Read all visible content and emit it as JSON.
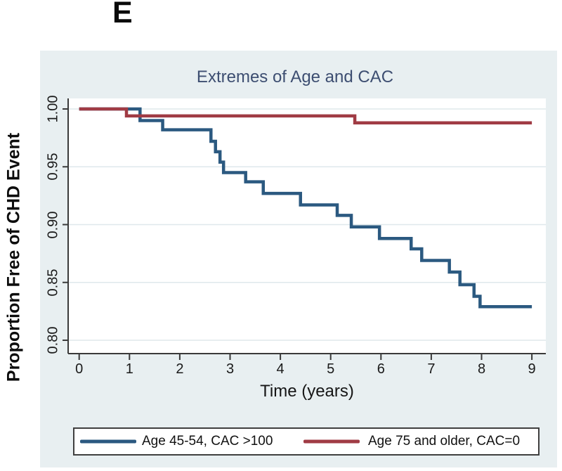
{
  "panel_label": "E",
  "colors": {
    "panel_bg": "#e8eff1",
    "plot_bg": "#ffffff",
    "grid": "#dfe8ec",
    "axis": "#3a3a3a",
    "title": "#3d4e71",
    "legend_border": "#3f3f3f",
    "series_blue": "#2b5980",
    "series_red": "#a03b44"
  },
  "chart_data": {
    "type": "line",
    "subtype": "kaplan-meier-step",
    "title": "Extremes of Age and CAC",
    "xlabel": "Time (years)",
    "ylabel": "Proportion Free of CHD Event",
    "xlim": [
      0,
      9
    ],
    "ylim": [
      0.8,
      1.0
    ],
    "x_ticks": [
      0,
      1,
      2,
      3,
      4,
      5,
      6,
      7,
      8,
      9
    ],
    "y_ticks": [
      {
        "value": 1.0,
        "label": "1.00"
      },
      {
        "value": 0.95,
        "label": "0.95"
      },
      {
        "value": 0.9,
        "label": "0.90"
      },
      {
        "value": 0.85,
        "label": "0.85"
      },
      {
        "value": 0.8,
        "label": "0.80"
      }
    ],
    "grid": true,
    "legend_position": "bottom",
    "x_end": 9.0,
    "series": [
      {
        "name": "Age 45-54, CAC >100",
        "color": "#2b5980",
        "steps": [
          [
            0,
            1.0
          ],
          [
            1.21,
            0.99
          ],
          [
            1.66,
            0.982
          ],
          [
            2.62,
            0.972
          ],
          [
            2.71,
            0.963
          ],
          [
            2.8,
            0.954
          ],
          [
            2.87,
            0.945
          ],
          [
            3.31,
            0.937
          ],
          [
            3.66,
            0.927
          ],
          [
            4.4,
            0.917
          ],
          [
            5.13,
            0.908
          ],
          [
            5.41,
            0.898
          ],
          [
            5.97,
            0.888
          ],
          [
            6.6,
            0.879
          ],
          [
            6.81,
            0.869
          ],
          [
            7.36,
            0.859
          ],
          [
            7.57,
            0.848
          ],
          [
            7.85,
            0.838
          ],
          [
            7.97,
            0.829
          ]
        ]
      },
      {
        "name": "Age 75 and older, CAC=0",
        "color": "#a03b44",
        "steps": [
          [
            0,
            1.0
          ],
          [
            0.94,
            0.994
          ],
          [
            5.48,
            0.988
          ]
        ]
      }
    ]
  }
}
